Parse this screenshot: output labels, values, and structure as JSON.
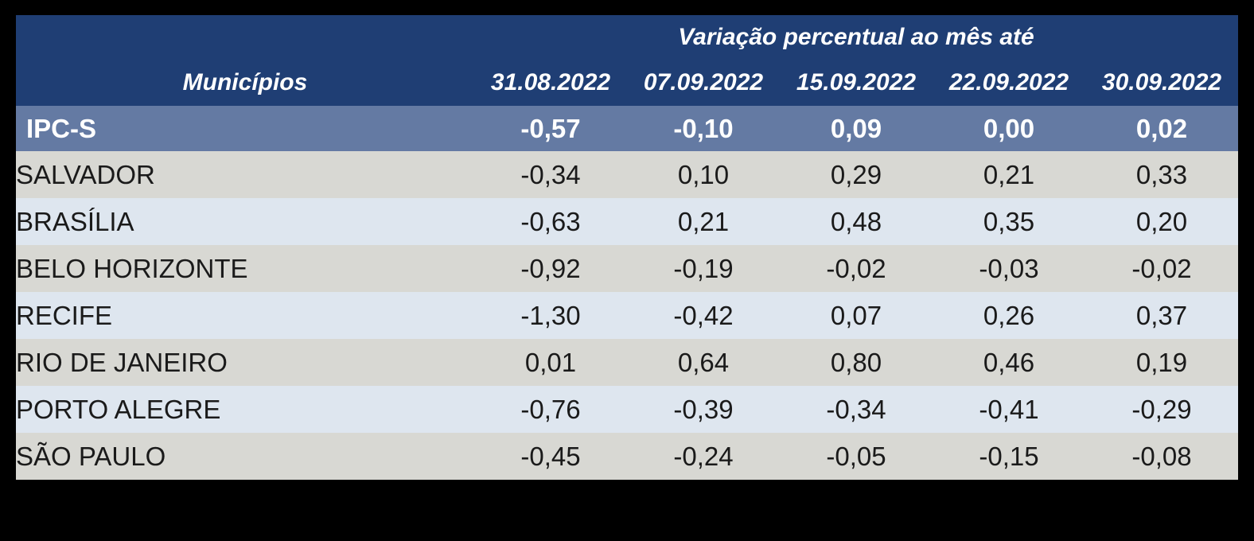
{
  "colors": {
    "page_bg": "#000000",
    "header_bg": "#1F3E74",
    "summary_row_bg": "#647AA3",
    "row_gray_bg": "#D8D8D3",
    "row_blue_bg": "#DEE6EF",
    "header_text": "#FFFFFF",
    "body_text": "#1A1A1A"
  },
  "chart_data": {
    "type": "table",
    "title": "Variação percentual ao mês até",
    "row_header": "Municípios",
    "columns": [
      "31.08.2022",
      "07.09.2022",
      "15.09.2022",
      "22.09.2022",
      "30.09.2022"
    ],
    "summary_row": {
      "label": "IPC-S",
      "values": [
        "-0,57",
        "-0,10",
        "0,09",
        "0,00",
        "0,02"
      ]
    },
    "rows": [
      {
        "label": "SALVADOR",
        "values": [
          "-0,34",
          "0,10",
          "0,29",
          "0,21",
          "0,33"
        ]
      },
      {
        "label": "BRASÍLIA",
        "values": [
          "-0,63",
          "0,21",
          "0,48",
          "0,35",
          "0,20"
        ]
      },
      {
        "label": "BELO HORIZONTE",
        "values": [
          "-0,92",
          "-0,19",
          "-0,02",
          "-0,03",
          "-0,02"
        ]
      },
      {
        "label": "RECIFE",
        "values": [
          "-1,30",
          "-0,42",
          "0,07",
          "0,26",
          "0,37"
        ]
      },
      {
        "label": "RIO DE JANEIRO",
        "values": [
          "0,01",
          "0,64",
          "0,80",
          "0,46",
          "0,19"
        ]
      },
      {
        "label": "PORTO ALEGRE",
        "values": [
          "-0,76",
          "-0,39",
          "-0,34",
          "-0,41",
          "-0,29"
        ]
      },
      {
        "label": "SÃO PAULO",
        "values": [
          "-0,45",
          "-0,24",
          "-0,05",
          "-0,15",
          "-0,08"
        ]
      }
    ]
  }
}
